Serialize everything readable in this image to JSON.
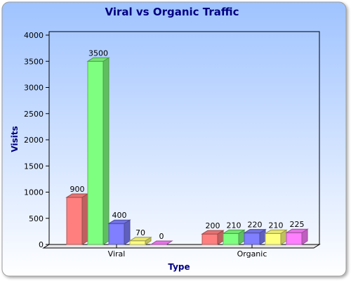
{
  "chart_data": {
    "type": "bar",
    "title": "Viral vs Organic Traffic",
    "xlabel": "Type",
    "ylabel": "Visits",
    "categories": [
      "Viral",
      "Organic"
    ],
    "series": [
      {
        "values": [
          900,
          200
        ],
        "color": "#ff7f7f"
      },
      {
        "values": [
          3500,
          210
        ],
        "color": "#7fff7f"
      },
      {
        "values": [
          400,
          220
        ],
        "color": "#7f7fff"
      },
      {
        "values": [
          70,
          210
        ],
        "color": "#ffff7f"
      },
      {
        "values": [
          0,
          225
        ],
        "color": "#ff7fff"
      }
    ],
    "ylim": [
      0,
      4000
    ],
    "yticks": [
      0,
      500,
      1000,
      1500,
      2000,
      2500,
      3000,
      3500,
      4000
    ],
    "grid": false,
    "legend": "none",
    "style": "3d-bar",
    "background_gradient": [
      "#9fc3ff",
      "#ffffff"
    ],
    "title_color": "#000080",
    "axis_label_color": "#000080"
  }
}
